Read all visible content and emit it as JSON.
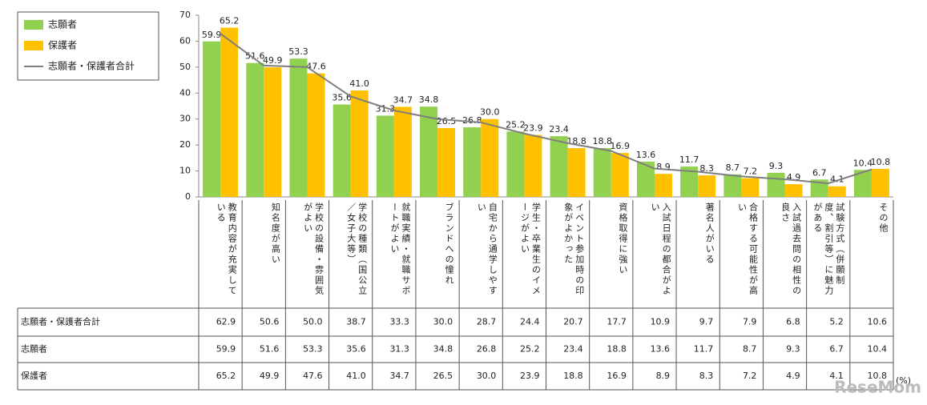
{
  "chart_data": {
    "type": "bar",
    "categories": [
      "教育内容が充実している",
      "知名度が高い",
      "学校の設備・雰囲気がよい",
      "学校の種類（国公立／女子大等）",
      "就職実績・就職サポートがよい",
      "ブランドへの憧れ",
      "自宅から通学しやすい",
      "学生・卒業生のイメージがよい",
      "イベント参加時の印象がよかった",
      "資格取得に強い",
      "入試日程の都合がよい",
      "著名人がいる",
      "合格する可能性が高い",
      "入試過去問の相性の良さ",
      "試験方式（併願制度、割引等）に魅力がある",
      "その他"
    ],
    "series": [
      {
        "name": "志願者",
        "color": "#92d050",
        "values": [
          59.9,
          51.6,
          53.3,
          35.6,
          31.3,
          34.8,
          26.8,
          25.2,
          23.4,
          18.8,
          13.6,
          11.7,
          8.7,
          9.3,
          6.7,
          10.4
        ],
        "value_labels": [
          "59.9",
          "51.6",
          "53.3",
          "35.6",
          "31.3",
          "34.8",
          "26.8",
          "25.2",
          "23.4",
          "18.8",
          "13.6",
          "11.7",
          "8.7",
          "9.3",
          "6.7",
          "10.4"
        ]
      },
      {
        "name": "保護者",
        "color": "#ffc000",
        "values": [
          65.2,
          49.9,
          47.6,
          41.0,
          34.7,
          26.5,
          30.0,
          23.9,
          18.8,
          16.9,
          8.9,
          8.3,
          7.2,
          4.9,
          4.1,
          10.8
        ],
        "value_labels": [
          "65.2",
          "49.9",
          "47.6",
          "41.0",
          "34.7",
          "26.5",
          "30.0",
          "23.9",
          "18.8",
          "16.9",
          "8.9",
          "8.3",
          "7.2",
          "4.9",
          "4.1",
          "10.8"
        ]
      },
      {
        "name": "志願者・保護者合計",
        "type": "line",
        "color": "#7f7f7f",
        "values": [
          62.9,
          50.6,
          50.0,
          38.7,
          33.3,
          30.0,
          28.7,
          24.4,
          20.7,
          17.7,
          10.9,
          9.7,
          7.9,
          6.8,
          5.2,
          10.6
        ],
        "value_labels": [
          "62.9",
          "50.6",
          "50.0",
          "38.7",
          "33.3",
          "30.0",
          "28.7",
          "24.4",
          "20.7",
          "17.7",
          "10.9",
          "9.7",
          "7.9",
          "6.8",
          "5.2",
          "10.6"
        ]
      }
    ],
    "ylim": [
      0,
      70
    ],
    "yticks": [
      0,
      10,
      20,
      30,
      40,
      50,
      60,
      70
    ],
    "legend_position": "upper left",
    "table_rows": [
      2,
      0,
      1
    ],
    "unit": "(%)",
    "watermark": "ReseMom"
  }
}
